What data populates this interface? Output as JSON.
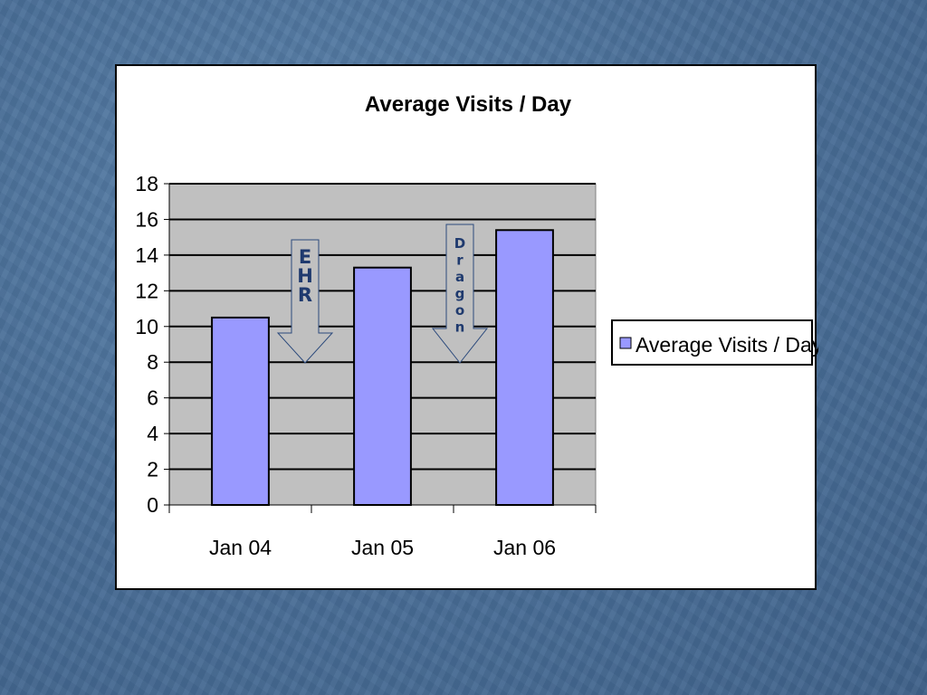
{
  "chart_data": {
    "type": "bar",
    "title": "Average Visits / Day",
    "xlabel": "",
    "ylabel": "",
    "categories": [
      "Jan 04",
      "Jan 05",
      "Jan 06"
    ],
    "series": [
      {
        "name": "Average Visits / Day",
        "values": [
          10.5,
          13.3,
          15.4
        ],
        "color": "#9999ff"
      }
    ],
    "ylim": [
      0,
      18
    ],
    "yticks": [
      0,
      2,
      4,
      6,
      8,
      10,
      12,
      14,
      16,
      18
    ],
    "grid": true,
    "plot_background": "#c0c0c0",
    "legend_position": "right",
    "annotations": [
      {
        "text": "EHR",
        "shape": "down-arrow",
        "between": [
          "Jan 04",
          "Jan 05"
        ]
      },
      {
        "text": "Dragon",
        "shape": "down-arrow",
        "between": [
          "Jan 05",
          "Jan 06"
        ]
      }
    ]
  }
}
